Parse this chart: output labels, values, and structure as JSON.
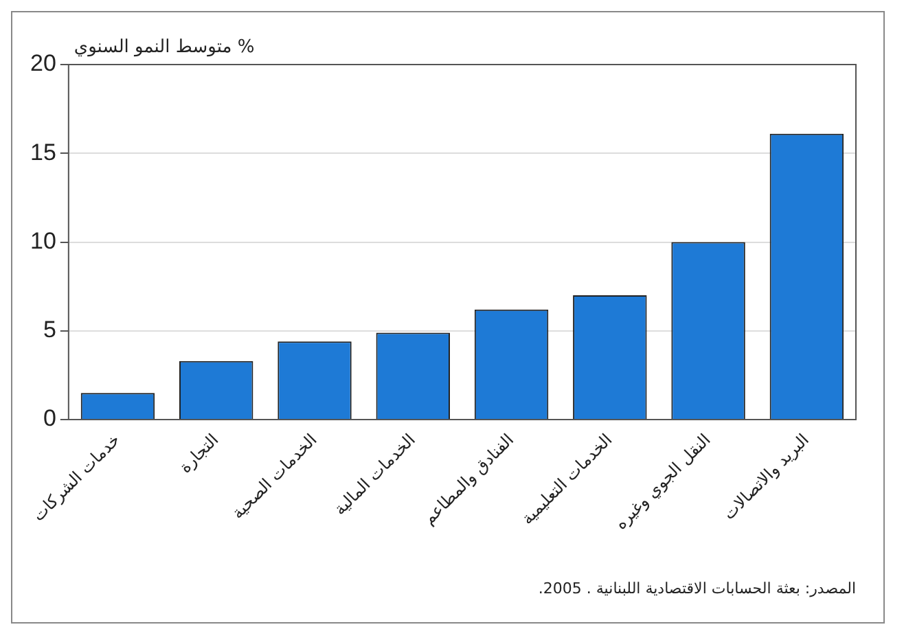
{
  "chart_data": {
    "type": "bar",
    "ylabel": "متوسط النمو السنوي %",
    "categories": [
      "خدمات الشركات",
      "التجارة",
      "الخدمات الصحية",
      "الخدمات المالية",
      "الفنادق والمطاعم",
      "الخدمات التعليمية",
      "النقل الجوي وغيره",
      "البريد والاتصالات"
    ],
    "values": [
      1.5,
      3.3,
      4.4,
      4.9,
      6.2,
      7.0,
      10.0,
      16.1
    ],
    "color": "#1e7ad6",
    "ylim": [
      0,
      20
    ],
    "yticks": [
      0,
      5,
      10,
      15,
      20
    ],
    "grid": "y",
    "annotations": [
      "المصدر: بعثة الحسابات الاقتصادية اللبنانية . 2005."
    ]
  }
}
